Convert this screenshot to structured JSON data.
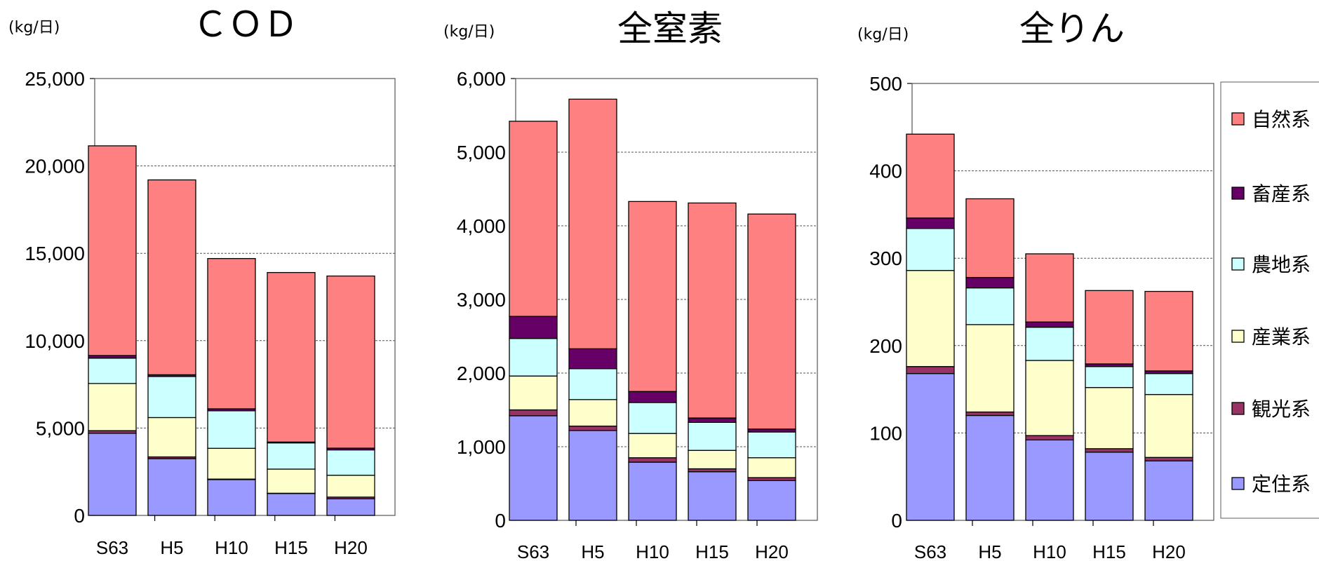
{
  "chart_data": [
    {
      "type": "bar",
      "stacked": true,
      "title": "ＣＯＤ",
      "unit": "(kg/日)",
      "categories": [
        "S63",
        "H5",
        "H10",
        "H15",
        "H20"
      ],
      "ylim": [
        0,
        25000
      ],
      "yticks": [
        0,
        5000,
        10000,
        15000,
        20000,
        25000
      ],
      "ytick_labels": [
        "0",
        "5,000",
        "10,000",
        "15,000",
        "20,000",
        "25,000"
      ],
      "grid": true,
      "series": [
        {
          "name": "定住系",
          "color": "#9999ff",
          "values": [
            4700,
            3250,
            2050,
            1250,
            950
          ]
        },
        {
          "name": "観光系",
          "color": "#993366",
          "values": [
            150,
            100,
            30,
            20,
            100
          ]
        },
        {
          "name": "産業系",
          "color": "#ffffcc",
          "values": [
            2700,
            2250,
            1760,
            1380,
            1250
          ]
        },
        {
          "name": "農地系",
          "color": "#ccffff",
          "values": [
            1450,
            2350,
            2150,
            1500,
            1450
          ]
        },
        {
          "name": "畜産系",
          "color": "#660066",
          "values": [
            150,
            100,
            110,
            50,
            100
          ]
        },
        {
          "name": "自然系",
          "color": "#ff8080",
          "values": [
            12000,
            11150,
            8600,
            9700,
            9850
          ]
        }
      ]
    },
    {
      "type": "bar",
      "stacked": true,
      "title": "全窒素",
      "unit": "(kg/日)",
      "categories": [
        "S63",
        "H5",
        "H10",
        "H15",
        "H20"
      ],
      "ylim": [
        0,
        6000
      ],
      "yticks": [
        0,
        1000,
        2000,
        3000,
        4000,
        5000,
        6000
      ],
      "ytick_labels": [
        "0",
        "1,000",
        "2,000",
        "3,000",
        "4,000",
        "5,000",
        "6,000"
      ],
      "grid": true,
      "series": [
        {
          "name": "定住系",
          "color": "#9999ff",
          "values": [
            1420,
            1220,
            790,
            660,
            540
          ]
        },
        {
          "name": "観光系",
          "color": "#993366",
          "values": [
            80,
            60,
            60,
            40,
            40
          ]
        },
        {
          "name": "産業系",
          "color": "#ffffcc",
          "values": [
            460,
            360,
            330,
            250,
            270
          ]
        },
        {
          "name": "農地系",
          "color": "#ccffff",
          "values": [
            510,
            420,
            420,
            380,
            350
          ]
        },
        {
          "name": "畜産系",
          "color": "#660066",
          "values": [
            300,
            270,
            150,
            60,
            40
          ]
        },
        {
          "name": "自然系",
          "color": "#ff8080",
          "values": [
            2650,
            3390,
            2580,
            2920,
            2920
          ]
        }
      ]
    },
    {
      "type": "bar",
      "stacked": true,
      "title": "全りん",
      "unit": "(kg/日)",
      "categories": [
        "S63",
        "H5",
        "H10",
        "H15",
        "H20"
      ],
      "ylim": [
        0,
        500
      ],
      "yticks": [
        0,
        100,
        200,
        300,
        400,
        500
      ],
      "ytick_labels": [
        "0",
        "100",
        "200",
        "300",
        "400",
        "500"
      ],
      "grid": true,
      "series": [
        {
          "name": "定住系",
          "color": "#9999ff",
          "values": [
            168,
            120,
            92,
            78,
            68
          ]
        },
        {
          "name": "観光系",
          "color": "#993366",
          "values": [
            8,
            4,
            5,
            4,
            4
          ]
        },
        {
          "name": "産業系",
          "color": "#ffffcc",
          "values": [
            110,
            100,
            86,
            70,
            72
          ]
        },
        {
          "name": "農地系",
          "color": "#ccffff",
          "values": [
            48,
            42,
            38,
            24,
            24
          ]
        },
        {
          "name": "畜産系",
          "color": "#660066",
          "values": [
            12,
            12,
            6,
            3,
            3
          ]
        },
        {
          "name": "自然系",
          "color": "#ff8080",
          "values": [
            96,
            90,
            78,
            84,
            91
          ]
        }
      ]
    }
  ],
  "legend": {
    "placement": "right",
    "items": [
      {
        "label": "自然系",
        "color": "#ff8080"
      },
      {
        "label": "畜産系",
        "color": "#660066"
      },
      {
        "label": "農地系",
        "color": "#ccffff"
      },
      {
        "label": "産業系",
        "color": "#ffffcc"
      },
      {
        "label": "観光系",
        "color": "#993366"
      },
      {
        "label": "定住系",
        "color": "#9999ff"
      }
    ]
  }
}
